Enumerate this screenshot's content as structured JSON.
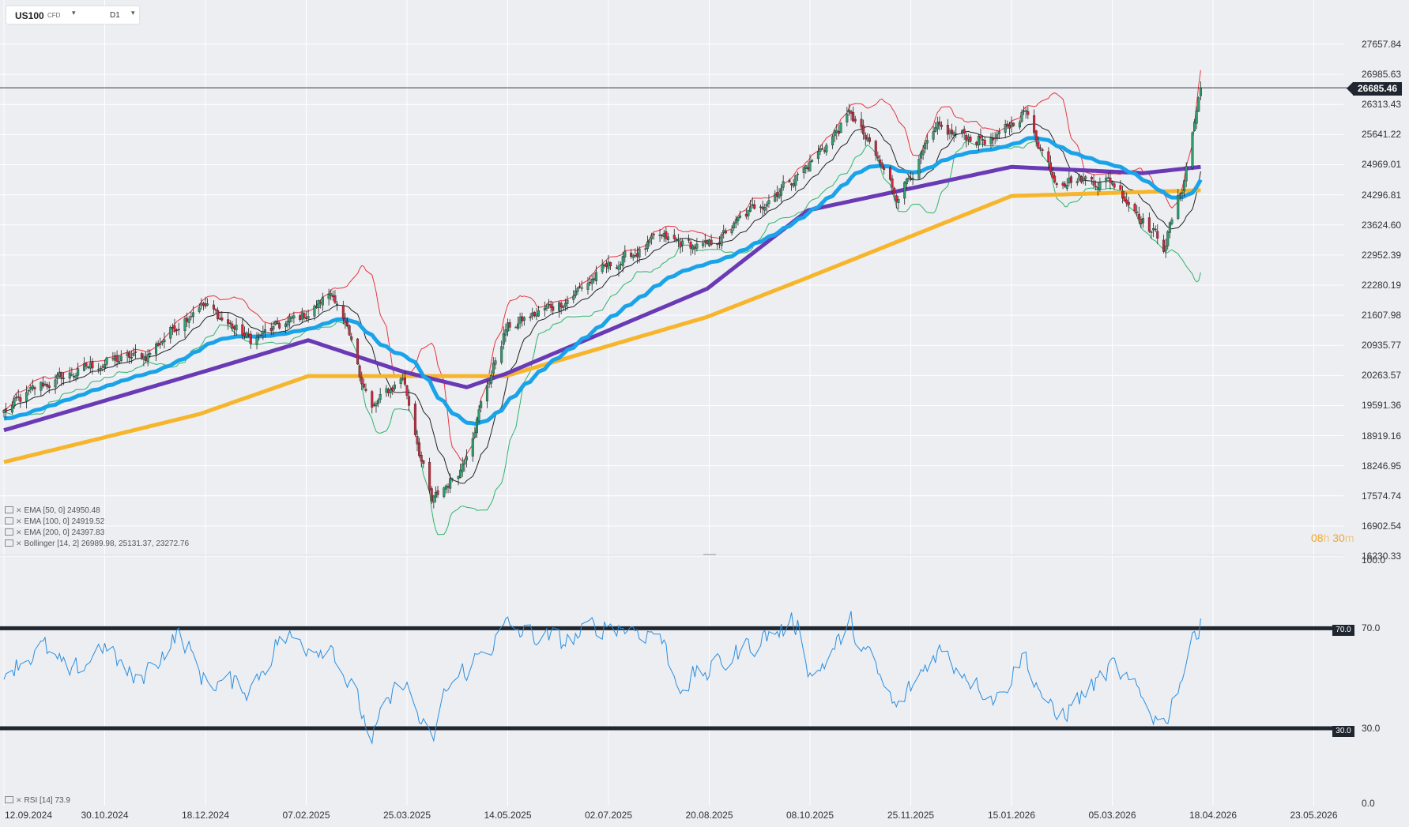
{
  "header": {
    "symbol": "US100",
    "instrument_class": "CFD",
    "timeframe": "D1",
    "dropdown_glyph": "▾"
  },
  "legend": {
    "ema50": "EMA [50, 0] 24950.48",
    "ema100": "EMA [100, 0] 24919.52",
    "ema200": "EMA [200, 0] 24397.83",
    "bollinger": "Bollinger [14, 2] 26989.98, 25131.37, 23272.76",
    "rsi": "RSI [14] 73.9"
  },
  "countdown": {
    "hours": "08",
    "h": "h",
    "minutes": "30",
    "m": "m"
  },
  "colors": {
    "bull": "#2f9e6e",
    "bear": "#d7263d",
    "ema50": "#1aa3e8",
    "ema100": "#6a3ab5",
    "ema200": "#f7b52c",
    "bb_upper": "#e8353e",
    "bb_mid": "#222222",
    "bb_lower": "#2fb46a",
    "rsi": "#2b8fe0",
    "price_line": "#333a44"
  },
  "chart_data": {
    "type": "candlestick",
    "current_price": "26685.46",
    "price_axis": {
      "ticks": [
        "27657.84",
        "26985.63",
        "26313.43",
        "25641.22",
        "24969.01",
        "24296.81",
        "23624.60",
        "22952.39",
        "22280.19",
        "21607.98",
        "20935.77",
        "20263.57",
        "19591.36",
        "18919.16",
        "18246.95",
        "17574.74",
        "16902.54",
        "16230.33"
      ]
    },
    "date_axis": {
      "ticks": [
        "12.09.2024",
        "30.10.2024",
        "18.12.2024",
        "07.02.2025",
        "25.03.2025",
        "14.05.2025",
        "02.07.2025",
        "20.08.2025",
        "08.10.2025",
        "25.11.2025",
        "15.01.2026",
        "05.03.2026",
        "18.04.2026",
        "23.05.2026"
      ]
    },
    "price_anchors": [
      {
        "date": "2024-09-12",
        "close": 19450
      },
      {
        "date": "2024-10-01",
        "close": 20050
      },
      {
        "date": "2024-10-30",
        "close": 20550
      },
      {
        "date": "2024-11-20",
        "close": 20700
      },
      {
        "date": "2024-12-16",
        "close": 21900
      },
      {
        "date": "2025-01-10",
        "close": 21050
      },
      {
        "date": "2025-02-07",
        "close": 21650
      },
      {
        "date": "2025-02-19",
        "close": 22150
      },
      {
        "date": "2025-03-10",
        "close": 19500
      },
      {
        "date": "2025-03-25",
        "close": 20250
      },
      {
        "date": "2025-04-08",
        "close": 17400
      },
      {
        "date": "2025-04-22",
        "close": 18200
      },
      {
        "date": "2025-05-14",
        "close": 21300
      },
      {
        "date": "2025-06-10",
        "close": 21900
      },
      {
        "date": "2025-07-02",
        "close": 22650
      },
      {
        "date": "2025-07-28",
        "close": 23300
      },
      {
        "date": "2025-08-20",
        "close": 23100
      },
      {
        "date": "2025-09-15",
        "close": 24100
      },
      {
        "date": "2025-10-08",
        "close": 24950
      },
      {
        "date": "2025-10-29",
        "close": 26100
      },
      {
        "date": "2025-11-20",
        "close": 24300
      },
      {
        "date": "2025-12-10",
        "close": 25700
      },
      {
        "date": "2026-01-08",
        "close": 25500
      },
      {
        "date": "2026-01-21",
        "close": 26200
      },
      {
        "date": "2026-02-05",
        "close": 24700
      },
      {
        "date": "2026-03-05",
        "close": 24600
      },
      {
        "date": "2026-03-18",
        "close": 23900
      },
      {
        "date": "2026-03-30",
        "close": 23150
      },
      {
        "date": "2026-04-08",
        "close": 24450
      },
      {
        "date": "2026-04-17",
        "close": 26685.46
      }
    ],
    "ema200_anchors": [
      {
        "date": "2024-09-12",
        "value": 18330
      },
      {
        "date": "2024-12-16",
        "value": 19400
      },
      {
        "date": "2025-02-07",
        "value": 20250
      },
      {
        "date": "2025-05-14",
        "value": 20250
      },
      {
        "date": "2025-08-20",
        "value": 21570
      },
      {
        "date": "2025-10-08",
        "value": 22450
      },
      {
        "date": "2026-01-15",
        "value": 24270
      },
      {
        "date": "2026-04-17",
        "value": 24397.83
      }
    ],
    "ema100_anchors": [
      {
        "date": "2024-09-12",
        "value": 19040
      },
      {
        "date": "2024-12-16",
        "value": 20320
      },
      {
        "date": "2025-02-07",
        "value": 21050
      },
      {
        "date": "2025-03-25",
        "value": 20350
      },
      {
        "date": "2025-04-25",
        "value": 20000
      },
      {
        "date": "2025-05-14",
        "value": 20300
      },
      {
        "date": "2025-08-20",
        "value": 22200
      },
      {
        "date": "2025-10-08",
        "value": 23950
      },
      {
        "date": "2026-01-15",
        "value": 24920
      },
      {
        "date": "2026-03-20",
        "value": 24780
      },
      {
        "date": "2026-04-17",
        "value": 24919.52
      }
    ],
    "rsi": {
      "levels": [
        "100.0",
        "70.0",
        "30.0",
        "0.0"
      ],
      "overbought": 70,
      "oversold": 30,
      "anchors": [
        {
          "date": "2024-09-12",
          "value": 54
        },
        {
          "date": "2024-10-01",
          "value": 62
        },
        {
          "date": "2024-10-15",
          "value": 50
        },
        {
          "date": "2024-10-30",
          "value": 64
        },
        {
          "date": "2024-11-15",
          "value": 48
        },
        {
          "date": "2024-12-06",
          "value": 68
        },
        {
          "date": "2024-12-18",
          "value": 50
        },
        {
          "date": "2025-01-10",
          "value": 46
        },
        {
          "date": "2025-01-24",
          "value": 66
        },
        {
          "date": "2025-02-07",
          "value": 64
        },
        {
          "date": "2025-02-19",
          "value": 63
        },
        {
          "date": "2025-03-10",
          "value": 26
        },
        {
          "date": "2025-03-25",
          "value": 50
        },
        {
          "date": "2025-04-08",
          "value": 22
        },
        {
          "date": "2025-04-15",
          "value": 45
        },
        {
          "date": "2025-05-14",
          "value": 70
        },
        {
          "date": "2025-06-10",
          "value": 64
        },
        {
          "date": "2025-07-02",
          "value": 72
        },
        {
          "date": "2025-07-28",
          "value": 68
        },
        {
          "date": "2025-08-05",
          "value": 48
        },
        {
          "date": "2025-08-20",
          "value": 52
        },
        {
          "date": "2025-09-15",
          "value": 66
        },
        {
          "date": "2025-10-03",
          "value": 72
        },
        {
          "date": "2025-10-10",
          "value": 50
        },
        {
          "date": "2025-10-29",
          "value": 71
        },
        {
          "date": "2025-11-20",
          "value": 37
        },
        {
          "date": "2025-12-10",
          "value": 62
        },
        {
          "date": "2026-01-08",
          "value": 42
        },
        {
          "date": "2026-01-21",
          "value": 60
        },
        {
          "date": "2026-02-05",
          "value": 33
        },
        {
          "date": "2026-03-05",
          "value": 54
        },
        {
          "date": "2026-03-30",
          "value": 32
        },
        {
          "date": "2026-04-08",
          "value": 52
        },
        {
          "date": "2026-04-17",
          "value": 73.9
        }
      ]
    }
  }
}
